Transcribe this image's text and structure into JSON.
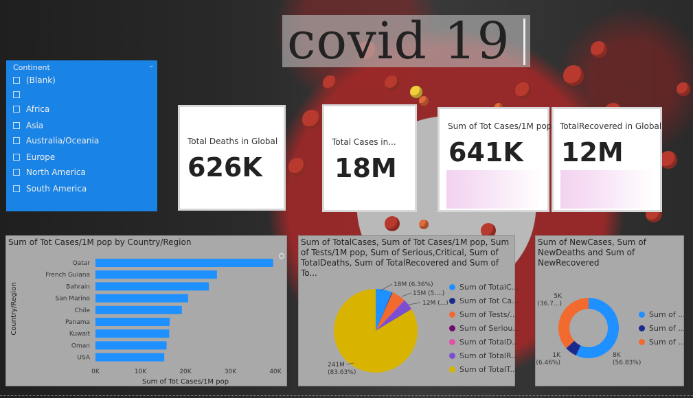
{
  "title": "covid 19",
  "slicer": {
    "header": "Continent",
    "items": [
      "(Blank)",
      "",
      "Africa",
      "Asia",
      "Australia/Oceania",
      "Europe",
      "North America",
      "South America"
    ]
  },
  "cards": {
    "deaths": {
      "label": "Total Deaths in Global",
      "value": "626K"
    },
    "cases": {
      "label": "Total Cases in...",
      "value": "18M"
    },
    "per_million": {
      "label": "Sum of Tot Cases/1M pop",
      "value": "641K"
    },
    "recovered": {
      "label": "TotalRecovered in Global",
      "value": "12M"
    }
  },
  "colors": {
    "bar": "#1e90ff",
    "slicer_bg": "#1a84e6",
    "panel_bg": "#a9a9a9"
  },
  "chart_data": [
    {
      "type": "bar",
      "title": "Sum of Tot Cases/1M pop by Country/Region",
      "xlabel": "Sum of Tot Cases/1M pop",
      "ylabel": "Country/Region",
      "categories": [
        "Qatar",
        "French Guiana",
        "Bahrain",
        "San Marino",
        "Chile",
        "Panama",
        "Kuwait",
        "Oman",
        "USA"
      ],
      "values": [
        39500,
        27000,
        25200,
        20600,
        19200,
        16500,
        16400,
        15800,
        15300
      ],
      "xlim": [
        0,
        40000
      ],
      "xticks": [
        "0K",
        "10K",
        "20K",
        "30K",
        "40K"
      ]
    },
    {
      "type": "pie",
      "title": "Sum of TotalCases, Sum of Tot Cases/1M pop, Sum of Tests/1M pop, Sum of Serious,Critical, Sum of TotalDeaths, Sum of TotalRecovered and Sum of To...",
      "slices": [
        {
          "name": "Sum of TotalC...",
          "label": "18M (6.36%)",
          "percent": 6.36,
          "color": "#1e90ff"
        },
        {
          "name": "Sum of Tot Ca...",
          "label": "",
          "percent": 0.23,
          "color": "#1a2a8c"
        },
        {
          "name": "Sum of Tests/...",
          "label": "15M (5....)",
          "percent": 5.3,
          "color": "#f26a2e"
        },
        {
          "name": "Sum of Seriou...",
          "label": "",
          "percent": 0.01,
          "color": "#6b0f6b"
        },
        {
          "name": "Sum of TotalD...",
          "label": "",
          "percent": 0.22,
          "color": "#e24fa8"
        },
        {
          "name": "Sum of TotalR...",
          "label": "12M (...)",
          "percent": 4.25,
          "color": "#7b4fd0"
        },
        {
          "name": "Sum of TotalT...",
          "label": "241M\n(83.63%)",
          "percent": 83.63,
          "color": "#d8b400"
        }
      ]
    },
    {
      "type": "pie",
      "title": "Sum of NewCases, Sum of NewDeaths and Sum of NewRecovered",
      "donut": true,
      "slices": [
        {
          "name": "Sum of ...",
          "label": "8K\n(56.83%)",
          "percent": 56.83,
          "color": "#1e90ff"
        },
        {
          "name": "Sum of ...",
          "label": "1K\n(6.46%)",
          "percent": 6.46,
          "color": "#1a2a8c"
        },
        {
          "name": "Sum of ...",
          "label": "5K\n(36.7...)",
          "percent": 36.71,
          "color": "#f26a2e"
        }
      ]
    }
  ]
}
